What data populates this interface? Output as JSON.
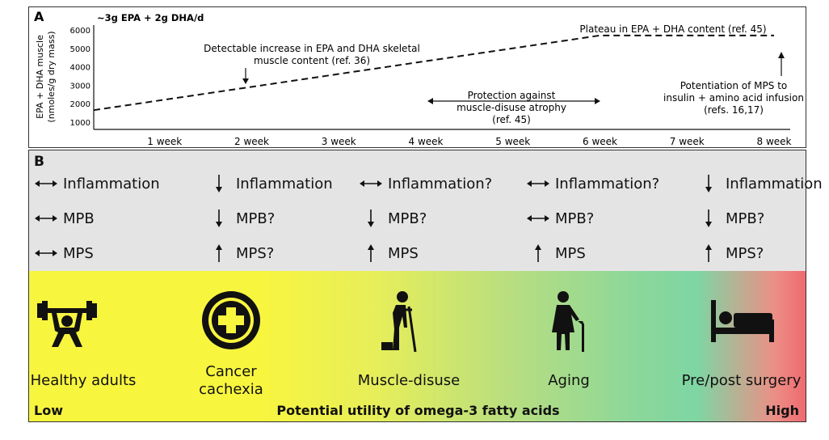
{
  "panel_a": {
    "letter": "A",
    "dose": "~3g EPA + 2g DHA/d",
    "ylabel_line1": "EPA + DHA muscle",
    "ylabel_line2": "(nmoles/g dry mass)",
    "y_ticks": [
      "6000",
      "5000",
      "4000",
      "3000",
      "2000",
      "1000"
    ],
    "x_ticks": [
      "1 week",
      "2 week",
      "3 week",
      "4 week",
      "5 week",
      "6 week",
      "7 week",
      "8 week"
    ],
    "annotation_increase_line1": "Detectable increase in EPA and DHA skeletal",
    "annotation_increase_line2": "muscle content (ref. 36)",
    "annotation_plateau": "Plateau in EPA + DHA content (ref. 45)",
    "annotation_protection_line1": "Protection against",
    "annotation_protection_line2": "muscle-disuse atrophy",
    "annotation_protection_line3": "(ref. 45)",
    "annotation_mps_line1": "Potentiation of MPS to",
    "annotation_mps_line2": "insulin + amino acid infusion",
    "annotation_mps_line3": "(refs. 16,17)"
  },
  "chart_data": {
    "type": "line",
    "title": "~3g EPA + 2g DHA/d",
    "ylabel": "EPA + DHA muscle (nmoles/g dry mass)",
    "xlabel": "",
    "x_categories": [
      "1 week",
      "2 week",
      "3 week",
      "4 week",
      "5 week",
      "6 week",
      "7 week",
      "8 week"
    ],
    "ylim": [
      1000,
      6000
    ],
    "series": [
      {
        "points": [
          [
            0.5,
            1650
          ],
          [
            6,
            5700
          ],
          [
            8,
            5700
          ]
        ]
      }
    ],
    "style": "dashed",
    "grid": false
  },
  "panel_b": {
    "letter": "B",
    "columns": [
      {
        "rows": [
          {
            "dir": "both",
            "label": "Inflammation"
          },
          {
            "dir": "both",
            "label": "MPB"
          },
          {
            "dir": "both",
            "label": "MPS"
          }
        ]
      },
      {
        "rows": [
          {
            "dir": "down",
            "label": "Inflammation"
          },
          {
            "dir": "down",
            "label": "MPB?"
          },
          {
            "dir": "up",
            "label": "MPS?"
          }
        ]
      },
      {
        "rows": [
          {
            "dir": "both",
            "label": "Inflammation?"
          },
          {
            "dir": "down",
            "label": "MPB?"
          },
          {
            "dir": "up",
            "label": "MPS"
          }
        ]
      },
      {
        "rows": [
          {
            "dir": "both",
            "label": "Inflammation?"
          },
          {
            "dir": "both",
            "label": "MPB?"
          },
          {
            "dir": "up",
            "label": "MPS"
          }
        ]
      },
      {
        "rows": [
          {
            "dir": "down",
            "label": "Inflammation"
          },
          {
            "dir": "down",
            "label": "MPB?"
          },
          {
            "dir": "up",
            "label": "MPS?"
          }
        ]
      }
    ],
    "groups": [
      {
        "label": "Healthy adults",
        "icon": "weightlifter-icon"
      },
      {
        "label_line1": "Cancer",
        "label_line2": "cachexia",
        "icon": "medical-cross-icon"
      },
      {
        "label": "Muscle-disuse",
        "icon": "crutch-person-icon"
      },
      {
        "label": "Aging",
        "icon": "elderly-person-icon"
      },
      {
        "label": "Pre/post surgery",
        "icon": "hospital-bed-icon"
      }
    ],
    "scale_low": "Low",
    "scale_high": "High",
    "scale_title": "Potential utility of omega-3 fatty acids"
  }
}
